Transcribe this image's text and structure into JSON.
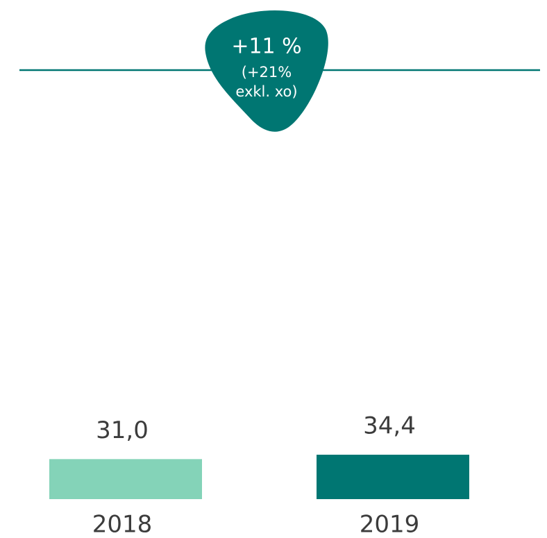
{
  "chart_data": {
    "type": "bar",
    "categories": [
      "2018",
      "2019"
    ],
    "values": [
      31.0,
      34.4
    ],
    "value_labels": [
      "31,0",
      "34,4"
    ],
    "colors": [
      "#84d3b8",
      "#007672"
    ],
    "annotation": {
      "lines": [
        "+11 %",
        "(+21%",
        "exkl. xo)"
      ],
      "color": "#007672"
    }
  }
}
